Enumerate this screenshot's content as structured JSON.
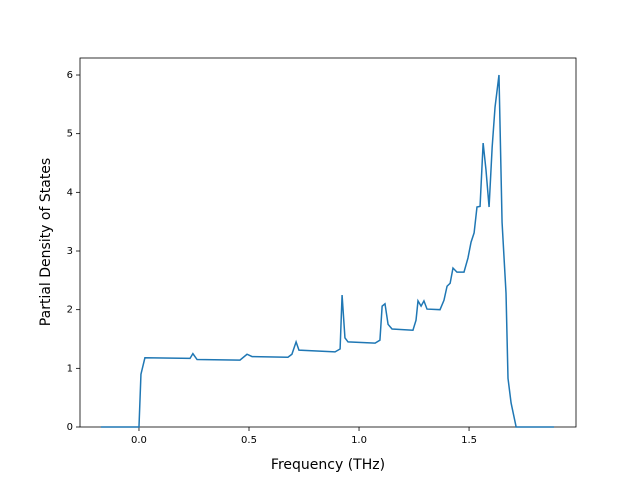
{
  "chart_data": {
    "type": "line",
    "xlabel": "Frequency (THz)",
    "ylabel": "Partial Density of States",
    "xlim": [
      -0.268,
      1.986
    ],
    "ylim": [
      0,
      6.29
    ],
    "xticks": [
      {
        "value": 0,
        "label": "0.0"
      },
      0.5,
      {
        "value": 1,
        "label": "1.0"
      },
      1.5
    ],
    "yticks": [
      0,
      1,
      2,
      3,
      4,
      5,
      6
    ],
    "x": [
      -0.173,
      0.0,
      0.009,
      0.027,
      0.232,
      0.245,
      0.264,
      0.459,
      0.491,
      0.514,
      0.677,
      0.695,
      0.714,
      0.727,
      0.891,
      0.914,
      0.923,
      0.936,
      0.95,
      1.073,
      1.095,
      1.105,
      1.118,
      1.132,
      1.15,
      1.245,
      1.259,
      1.268,
      1.282,
      1.295,
      1.309,
      1.368,
      1.386,
      1.4,
      1.414,
      1.427,
      1.445,
      1.477,
      1.495,
      1.509,
      1.523,
      1.536,
      1.55,
      1.564,
      1.577,
      1.591,
      1.605,
      1.618,
      1.636,
      1.65,
      1.668,
      1.677,
      1.691,
      1.714,
      1.886
    ],
    "series": [
      {
        "name": "PDOS",
        "color": "#1f77b4",
        "values": [
          0,
          0,
          0.9,
          1.18,
          1.17,
          1.25,
          1.15,
          1.14,
          1.24,
          1.2,
          1.19,
          1.24,
          1.45,
          1.31,
          1.28,
          1.33,
          2.25,
          1.52,
          1.45,
          1.43,
          1.48,
          2.06,
          2.1,
          1.75,
          1.67,
          1.65,
          1.82,
          2.15,
          2.06,
          2.15,
          2.01,
          2.0,
          2.16,
          2.4,
          2.45,
          2.71,
          2.64,
          2.64,
          2.88,
          3.15,
          3.31,
          3.75,
          3.76,
          4.84,
          4.38,
          3.75,
          4.77,
          5.45,
          6.0,
          3.49,
          2.28,
          0.83,
          0.41,
          0,
          0
        ]
      }
    ]
  }
}
